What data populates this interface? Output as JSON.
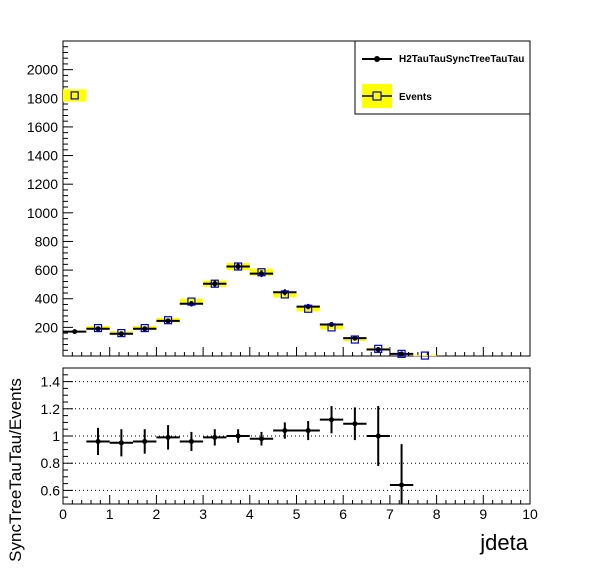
{
  "chart_data": [
    {
      "type": "line",
      "title": "",
      "xlabel": "",
      "ylabel": "",
      "xlim": [
        0,
        10
      ],
      "ylim": [
        0,
        2200
      ],
      "yticks": [
        "200",
        "400",
        "600",
        "800",
        "1000",
        "1200",
        "1400",
        "1600",
        "1800",
        "2000"
      ],
      "legend_position": "top-right",
      "legend": [
        "H2TauTauSyncTreeTauTau",
        "Events"
      ],
      "bin_width": 0.5,
      "x": [
        0.25,
        0.75,
        1.25,
        1.75,
        2.25,
        2.75,
        3.25,
        3.75,
        4.25,
        4.75,
        5.25,
        5.75,
        6.25,
        6.75,
        7.25,
        7.75
      ],
      "series": [
        {
          "name": "H2TauTauSyncTreeTauTau",
          "style": "black markers with error bars",
          "color": "#000000",
          "values": [
            170,
            190,
            155,
            190,
            245,
            365,
            505,
            625,
            575,
            445,
            345,
            220,
            125,
            45,
            15,
            null
          ]
        },
        {
          "name": "Events",
          "style": "open blue squares with yellow error bands",
          "color": "#0000cc",
          "band_color": "#ffff00",
          "values": [
            1820,
            195,
            160,
            195,
            250,
            380,
            505,
            625,
            585,
            430,
            330,
            200,
            115,
            50,
            15,
            3
          ]
        }
      ]
    },
    {
      "type": "scatter",
      "title": "",
      "xlabel": "jdeta",
      "ylabel": "SyncTreeTauTau/Events",
      "xlim": [
        0,
        10
      ],
      "ylim": [
        0.5,
        1.5
      ],
      "xticks": [
        "0",
        "1",
        "2",
        "3",
        "4",
        "5",
        "6",
        "7",
        "8",
        "9",
        "10"
      ],
      "yticks": [
        "0.6",
        "0.8",
        "1",
        "1.2",
        "1.4"
      ],
      "grid": "horizontal dotted",
      "x": [
        0.75,
        1.25,
        1.75,
        2.25,
        2.75,
        3.25,
        3.75,
        4.25,
        4.75,
        5.25,
        5.75,
        6.25,
        6.75,
        7.25
      ],
      "values": [
        0.96,
        0.95,
        0.96,
        0.99,
        0.96,
        0.99,
        1.0,
        0.98,
        1.04,
        1.04,
        1.12,
        1.09,
        1.0,
        0.64
      ],
      "errors": [
        0.1,
        0.1,
        0.09,
        0.09,
        0.07,
        0.06,
        0.05,
        0.05,
        0.06,
        0.07,
        0.1,
        0.12,
        0.22,
        0.3
      ]
    }
  ]
}
